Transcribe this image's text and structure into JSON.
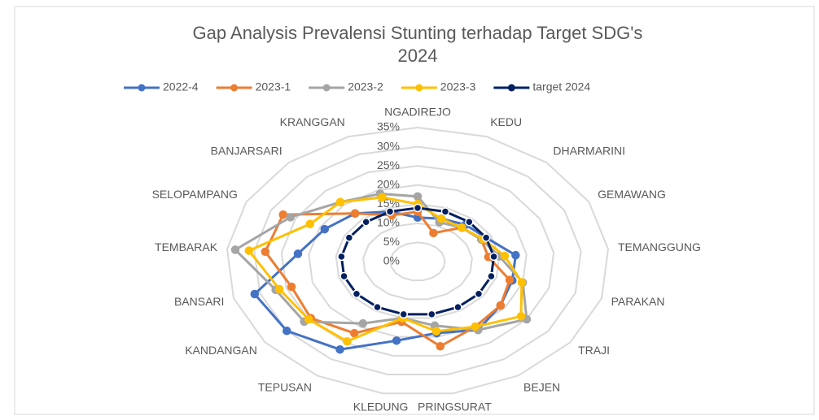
{
  "chart_data": {
    "type": "radar",
    "title": "Gap Analysis Prevalensi Stunting terhadap Target SDG's 2024",
    "categories": [
      "NGADIREJO",
      "KEDU",
      "DHARMARINI",
      "GEMAWANG",
      "TEMANGGUNG",
      "PARAKAN",
      "TRAJI",
      "BEJEN",
      "PRINGSURAT",
      "KLEDUNG",
      "TEPUSAN",
      "KANDANGAN",
      "BANSARI",
      "TEMBARAK",
      "SELOPAMPANG",
      "BANJARSARI",
      "KRANGGAN"
    ],
    "series": [
      {
        "name": "2022-4",
        "color": "#4472c4",
        "values": [
          11.5,
          12,
          13,
          14,
          18,
          18,
          19,
          21,
          19,
          21,
          27,
          30,
          31,
          22,
          19,
          17,
          14
        ]
      },
      {
        "name": "2023-1",
        "color": "#ed7d31",
        "values": [
          13,
          8,
          12,
          13,
          13,
          17.5,
          19,
          20,
          22.5,
          16,
          22,
          24.5,
          24,
          28,
          27.5,
          17,
          13
        ]
      },
      {
        "name": "2023-2",
        "color": "#a5a5a5",
        "values": [
          17,
          11,
          12,
          13,
          15,
          20,
          25,
          21,
          17,
          15,
          19,
          26,
          27,
          33.5,
          26,
          21,
          19
        ]
      },
      {
        "name": "2023-3",
        "color": "#ffc000",
        "values": [
          15,
          12,
          12,
          13.3,
          16,
          19.8,
          23.7,
          20,
          18.5,
          15,
          24.5,
          25,
          26.3,
          31,
          22,
          21,
          18
        ]
      },
      {
        "name": "target 2024",
        "color": "#002060",
        "values": [
          14,
          14,
          14,
          14,
          14,
          14,
          14,
          14,
          14,
          14,
          14,
          14,
          14,
          14,
          14,
          14,
          14
        ]
      }
    ],
    "rlim": [
      0,
      35
    ],
    "rticks": [
      {
        "value": 0,
        "label": "0%"
      },
      {
        "value": 5,
        "label": "5%"
      },
      {
        "value": 10,
        "label": "10%"
      },
      {
        "value": 15,
        "label": "15%"
      },
      {
        "value": 20,
        "label": "20%"
      },
      {
        "value": 25,
        "label": "25%"
      },
      {
        "value": 30,
        "label": "30%"
      },
      {
        "value": 35,
        "label": "35%"
      }
    ],
    "legend": "top",
    "grid": true
  }
}
